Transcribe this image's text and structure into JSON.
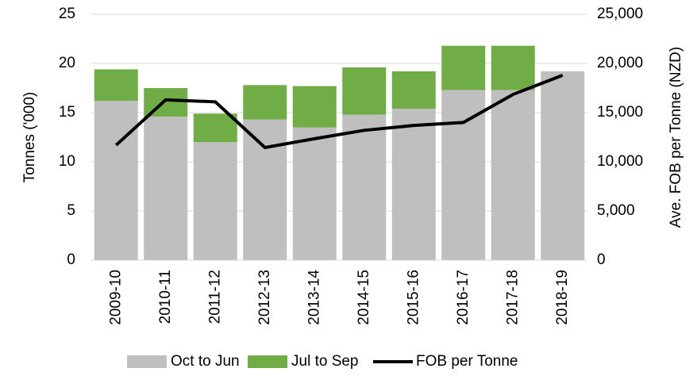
{
  "chart_data": {
    "type": "bar",
    "categories": [
      "2009-10",
      "2010-11",
      "2011-12",
      "2012-13",
      "2013-14",
      "2014-15",
      "2015-16",
      "2016-17",
      "2017-18",
      "2018-19"
    ],
    "stacked": true,
    "series": [
      {
        "name": "Oct to Jun",
        "color": "#bfbfbf",
        "type": "bar",
        "values": [
          16.2,
          14.6,
          12.0,
          14.3,
          13.5,
          14.8,
          15.4,
          17.3,
          17.3,
          19.2
        ]
      },
      {
        "name": "Jul to Sep",
        "color": "#70ad47",
        "type": "bar",
        "values": [
          3.2,
          2.9,
          2.9,
          3.5,
          4.2,
          4.8,
          3.8,
          4.5,
          4.5,
          0
        ]
      },
      {
        "name": "FOB per Tonne",
        "color": "#000000",
        "type": "line",
        "axis": "y2",
        "values": [
          11700,
          16300,
          16100,
          11450,
          12350,
          13200,
          13700,
          14000,
          16850,
          18800
        ]
      }
    ],
    "ylabel": "Tonnes ('000)",
    "y2label": "Ave. FOB per Tonne (NZD)",
    "ylim": [
      0,
      25
    ],
    "yticks": [
      0,
      5,
      10,
      15,
      20,
      25
    ],
    "y2lim": [
      0,
      25000
    ],
    "y2ticks": [
      0,
      {
        "value": 5000,
        "label": "5,000"
      },
      {
        "value": 10000,
        "label": "10,000"
      },
      {
        "value": 15000,
        "label": "15,000"
      },
      {
        "value": 20000,
        "label": "20,000"
      },
      {
        "value": 25000,
        "label": "25,000"
      }
    ],
    "grid": true,
    "legend": "bottom"
  }
}
